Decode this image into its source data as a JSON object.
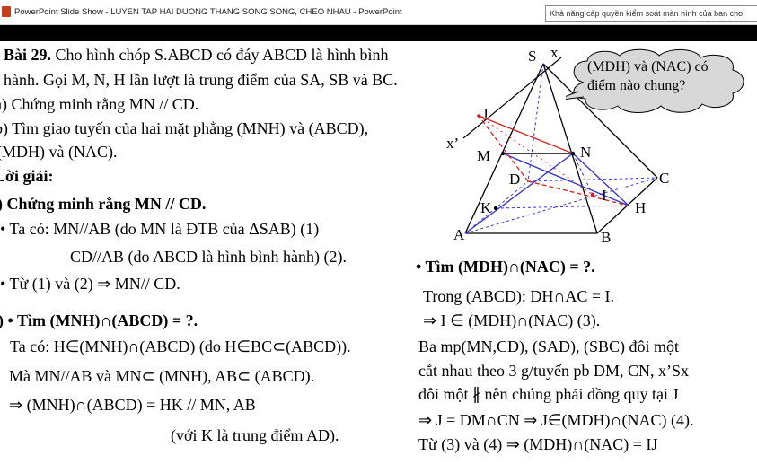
{
  "window": {
    "title": "PowerPoint Slide Show  -  LUYEN TAP HAI DUONG THANG SONG SONG, CHEO NHAU - PowerPoint",
    "notice": "Khả năng cấp quyền kiểm soát màn hình của ban cho"
  },
  "slide": {
    "problem": {
      "line1_num": "Bài 29.",
      "line1_text": " Cho hình chóp S.ABCD có đáy ABCD là hình bình",
      "line2": "hành. Gọi M, N, H lần lượt là trung điểm của SA, SB và BC.",
      "line3": "a) Chứng minh rằng MN // CD.",
      "line4": "b) Tìm giao tuyến của hai mặt phẳng (MNH) và (ABCD),",
      "line5": "(MDH) và (NAC)."
    },
    "solution_heading": "Lời giải:",
    "part_a": {
      "heading": "a) Chứng minh rằng MN // CD.",
      "l1": "• Ta có: MN//AB (do MN là ĐTB của ΔSAB)  (1)",
      "l2": "CD//AB (do ABCD là hình bình hành) (2).",
      "l3": "• Từ (1) và (2) ⇒ MN// CD."
    },
    "part_b": {
      "heading": "b) • Tìm (MNH)∩(ABCD) = ?.",
      "l1": "Ta có: H∈(MNH)∩(ABCD) (do H∈BC⊂(ABCD)).",
      "l2": "Mà MN//AB và MN⊂ (MNH), AB⊂ (ABCD).",
      "l3": "⇒ (MNH)∩(ABCD) = HK // MN, AB",
      "l4": "(với K là trung điểm AD)."
    },
    "part_c": {
      "heading": "• Tìm (MDH)∩(NAC) = ?.",
      "l1": "Trong (ABCD): DH∩AC = I.",
      "l2": "⇒ I ∈ (MDH)∩(NAC)  (3).",
      "l3": "Ba mp(MN,CD), (SAD), (SBC) đôi một",
      "l4": "cắt nhau theo 3 g/tuyến pb DM, CN, x’Sx",
      "l5": "đôi một ∦ nên chúng phải đồng quy tại J",
      "l6": "⇒ J = DM∩CN ⇒ J∈(MDH)∩(NAC) (4).",
      "l7": "Từ (3) và (4) ⇒ (MDH)∩(NAC) = IJ"
    },
    "figure": {
      "labels": {
        "S": "S",
        "x": "x",
        "x_prime": "x’",
        "J": "J",
        "M": "M",
        "N": "N",
        "D": "D",
        "C": "C",
        "I": "I",
        "H": "H",
        "K": "K",
        "A": "A",
        "B": "B"
      },
      "colors": {
        "solid": "#000000",
        "dashed_blue": "#3a3ad0",
        "red": "#d81e1e",
        "blue_line": "#3333cc"
      }
    },
    "callout": {
      "line1": "(MDH) và (NAC) có",
      "line2": "điểm nào chung?"
    }
  }
}
